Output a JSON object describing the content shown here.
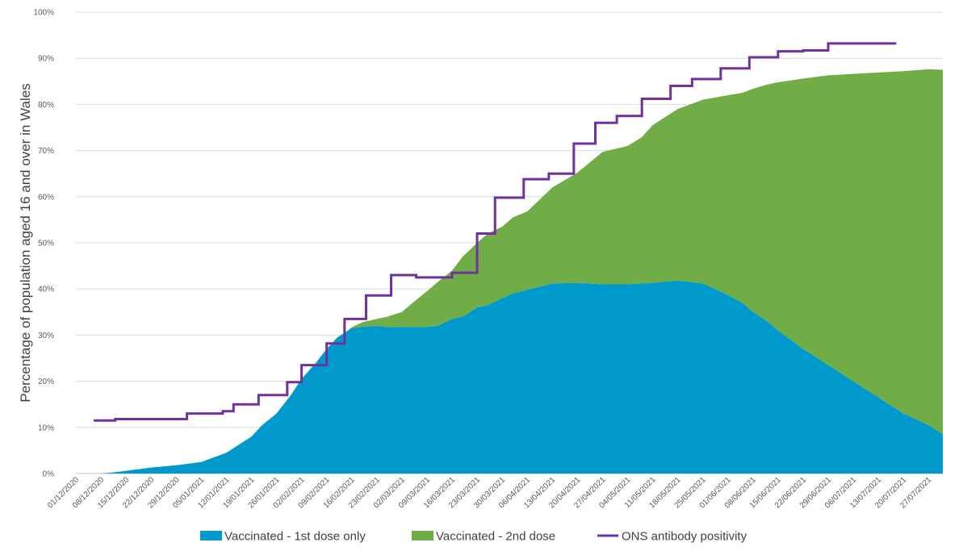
{
  "chart_data": {
    "type": "area",
    "title": "",
    "xlabel": "",
    "ylabel": "Percentage of population aged 16 and over in Wales",
    "ylim": [
      0,
      100
    ],
    "y_ticks": [
      0,
      10,
      20,
      30,
      40,
      50,
      60,
      70,
      80,
      90,
      100
    ],
    "y_tick_suffix": "%",
    "x_range_days": [
      0,
      242
    ],
    "x_tick_labels": [
      "01/12/2020",
      "08/12/2020",
      "15/12/2020",
      "22/12/2020",
      "29/12/2020",
      "05/01/2021",
      "12/01/2021",
      "19/01/2021",
      "26/01/2021",
      "02/02/2021",
      "09/02/2021",
      "16/02/2021",
      "23/02/2021",
      "02/03/2021",
      "09/03/2021",
      "16/03/2021",
      "23/03/2021",
      "30/03/2021",
      "06/04/2021",
      "13/04/2021",
      "20/04/2021",
      "27/04/2021",
      "04/05/2021",
      "11/05/2021",
      "18/05/2021",
      "25/05/2021",
      "01/06/2021",
      "08/06/2021",
      "15/06/2021",
      "22/06/2021",
      "29/06/2021",
      "06/07/2021",
      "13/07/2021",
      "20/07/2021",
      "27/07/2021"
    ],
    "x_tick_days": [
      0,
      7,
      14,
      21,
      28,
      35,
      42,
      49,
      56,
      63,
      70,
      77,
      84,
      91,
      98,
      105,
      112,
      119,
      126,
      133,
      140,
      147,
      154,
      161,
      168,
      175,
      182,
      189,
      196,
      203,
      210,
      217,
      224,
      231,
      238
    ],
    "legend_position": "bottom",
    "series": [
      {
        "name": "Vaccinated - 1st dose only",
        "type": "area",
        "color": "#0099CC",
        "x_days": [
          0,
          7,
          10,
          14,
          21,
          28,
          35,
          42,
          49,
          52,
          56,
          60,
          63,
          67,
          70,
          73,
          76,
          77,
          80,
          84,
          87,
          91,
          94,
          98,
          101,
          105,
          108,
          112,
          115,
          119,
          122,
          126,
          133,
          140,
          147,
          154,
          158,
          161,
          168,
          175,
          182,
          186,
          189,
          193,
          196,
          203,
          210,
          217,
          224,
          231,
          238,
          242
        ],
        "values": [
          0,
          0,
          0.2,
          0.6,
          1.3,
          1.8,
          2.5,
          4.5,
          8,
          10.5,
          13,
          17,
          20.5,
          24,
          27,
          29.5,
          31,
          31.5,
          31.8,
          32,
          31.7,
          31.8,
          31.7,
          31.8,
          32,
          33.5,
          34,
          36,
          36.5,
          38,
          39,
          39.8,
          41.2,
          41.3,
          41,
          41,
          41.2,
          41.3,
          41.8,
          41.2,
          38.7,
          37,
          35,
          33,
          31,
          27,
          23.5,
          20,
          16.5,
          13,
          10.5,
          8.5
        ]
      },
      {
        "name": "Vaccinated - 2nd dose",
        "type": "area",
        "color": "#70AD47",
        "x_days": [
          0,
          7,
          10,
          14,
          21,
          28,
          35,
          42,
          49,
          52,
          56,
          60,
          63,
          67,
          70,
          73,
          76,
          77,
          80,
          84,
          87,
          91,
          94,
          98,
          101,
          105,
          108,
          112,
          115,
          119,
          122,
          126,
          133,
          140,
          147,
          154,
          158,
          161,
          168,
          175,
          182,
          186,
          189,
          193,
          196,
          203,
          210,
          217,
          224,
          231,
          238,
          242
        ],
        "values": [
          0,
          0,
          0,
          0,
          0,
          0,
          0,
          0,
          0,
          0,
          0,
          0,
          0,
          0,
          0,
          0,
          0,
          0.2,
          1,
          1.5,
          2.3,
          3.2,
          5.3,
          7.7,
          9.5,
          10.5,
          13,
          14,
          15.5,
          15.5,
          16.5,
          17,
          20.8,
          23.9,
          28.7,
          30,
          31.7,
          34.2,
          37.2,
          39.8,
          43.3,
          45.5,
          48.4,
          51.3,
          53.8,
          58.6,
          62.8,
          66.6,
          70.4,
          74.2,
          77.1,
          79
        ]
      },
      {
        "name": "ONS antibody positivity",
        "type": "step-line",
        "color": "#7030A0",
        "x_days": [
          5,
          11,
          25,
          31,
          41,
          44,
          51,
          59,
          63,
          70,
          75,
          81,
          88,
          95,
          105,
          112,
          117,
          125,
          132,
          139,
          145,
          151,
          158,
          166,
          172,
          180,
          188,
          196,
          203,
          210,
          217,
          229
        ],
        "values": [
          11.5,
          11.8,
          11.8,
          13,
          13.5,
          15,
          17,
          19.8,
          23.5,
          28.2,
          33.5,
          38.6,
          43,
          42.5,
          43.5,
          52,
          59.8,
          63.8,
          65,
          71.5,
          76,
          77.5,
          81.2,
          84,
          85.5,
          87.8,
          90.2,
          91.5,
          91.7,
          93.2,
          93.2,
          93.2
        ]
      }
    ]
  }
}
